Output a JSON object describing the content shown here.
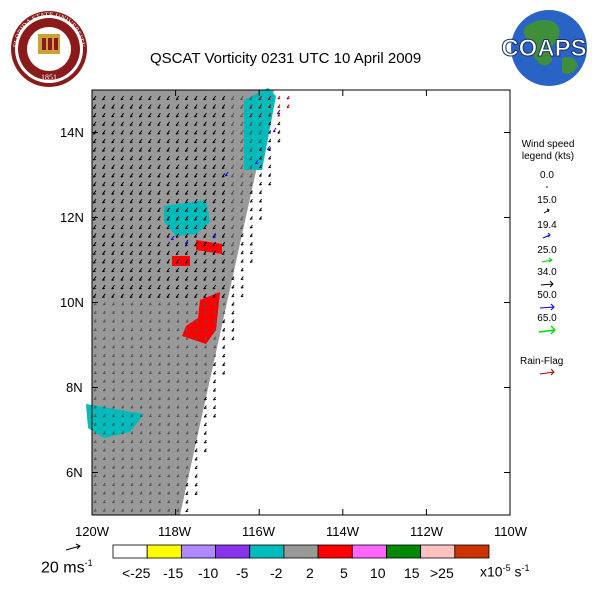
{
  "title": "QSCAT Vorticity 0231 UTC 10 April 2009",
  "fsu_logo": {
    "text_top": "FLORIDA STATE UNIVERSITY",
    "year": "1851"
  },
  "coaps_logo": {
    "text": "COAPS"
  },
  "map": {
    "lon_range": [
      -120,
      -110
    ],
    "lat_range": [
      5,
      15
    ],
    "x_ticks": [
      "120W",
      "118W",
      "116W",
      "114W",
      "112W",
      "110W"
    ],
    "y_ticks": [
      "6N",
      "8N",
      "10N",
      "12N",
      "14N"
    ]
  },
  "wind_legend": {
    "title_line1": "Wind speed",
    "title_line2": "legend (kts)",
    "entries": [
      {
        "value": "0.0",
        "color": "#000000"
      },
      {
        "value": "15.0",
        "color": "#000000"
      },
      {
        "value": "19.4",
        "color": "#000000"
      },
      {
        "value": "25.0",
        "color": "#0000ff"
      },
      {
        "value": "34.0",
        "color": "#00cc00"
      },
      {
        "value": "50.0",
        "color": "#000000"
      },
      {
        "value": "65.0",
        "color": "#0000ff"
      }
    ],
    "last_arrow_color": "#00dd00",
    "rain_flag_label": "Rain-Flag",
    "rain_flag_color": "#aa0000"
  },
  "scale_arrow": {
    "label": "20 ms",
    "exponent": "-1"
  },
  "colorbar": {
    "colors": [
      "#ffffff",
      "#ffff00",
      "#b088ff",
      "#8833ee",
      "#00bbbb",
      "#999999",
      "#ff0000",
      "#ff66ff",
      "#008800",
      "#ffc0c0",
      "#cc3300"
    ],
    "labels": [
      "<-25",
      "-15",
      "-10",
      "-5",
      "-2",
      "2",
      "5",
      "10",
      "15",
      ">25"
    ],
    "units": "x10",
    "units_exp": "-5",
    "units_tail": "s",
    "units_tail_exp": "-1"
  },
  "colors": {
    "swath_gray": "#999999",
    "cyan": "#00bbbb",
    "red": "#ff0000"
  }
}
